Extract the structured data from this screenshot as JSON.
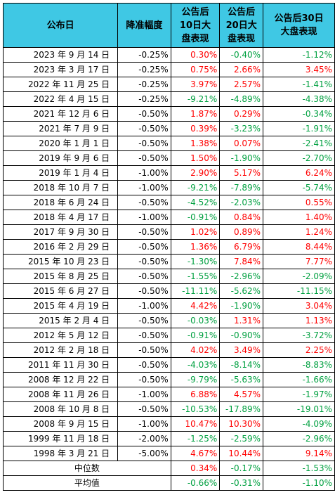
{
  "header": {
    "date": "公布日",
    "cut": "降准幅度",
    "d10": "公告后\n10日大\n盘表现",
    "d20": "公告后\n20日大\n盘表现",
    "d30": "公告后30日\n大盘表现"
  },
  "rows": [
    {
      "date": "2023 年 9 月 14 日",
      "cut": "-0.25%",
      "d10": "0.30%",
      "d20": "-0.40%",
      "d30": "-1.12%"
    },
    {
      "date": "2023 年 3 月 17 日",
      "cut": "-0.25%",
      "d10": "0.75%",
      "d20": "2.66%",
      "d30": "3.45%"
    },
    {
      "date": "2022 年 11 月 25 日",
      "cut": "-0.25%",
      "d10": "3.97%",
      "d20": "2.57%",
      "d30": "-1.41%"
    },
    {
      "date": "2022 年 4 月 15 日",
      "cut": "-0.25%",
      "d10": "-9.21%",
      "d20": "-4.89%",
      "d30": "-4.38%"
    },
    {
      "date": "2021 年 12 月 6 日",
      "cut": "-0.50%",
      "d10": "1.87%",
      "d20": "0.29%",
      "d30": "-0.34%"
    },
    {
      "date": "2021 年 7 月 9 日",
      "cut": "-0.50%",
      "d10": "0.39%",
      "d20": "-3.23%",
      "d30": "-1.91%"
    },
    {
      "date": "2020 年 1 月 1 日",
      "cut": "-0.50%",
      "d10": "1.38%",
      "d20": "0.07%",
      "d30": "-2.41%"
    },
    {
      "date": "2019 年 9 月 6 日",
      "cut": "-0.50%",
      "d10": "1.50%",
      "d20": "-1.90%",
      "d30": "-2.70%"
    },
    {
      "date": "2019 年 1 月 4 日",
      "cut": "-1.00%",
      "d10": "2.90%",
      "d20": "5.17%",
      "d30": "6.24%"
    },
    {
      "date": "2018 年 10 月 7 日",
      "cut": "-1.00%",
      "d10": "-9.21%",
      "d20": "-7.89%",
      "d30": "-5.74%"
    },
    {
      "date": "2018 年 6 月 24 日",
      "cut": "-0.50%",
      "d10": "-4.52%",
      "d20": "-2.03%",
      "d30": "0.55%"
    },
    {
      "date": "2018 年 4 月 17 日",
      "cut": "-1.00%",
      "d10": "-0.91%",
      "d20": "0.84%",
      "d30": "1.40%"
    },
    {
      "date": "2017 年 9 月 30 日",
      "cut": "-0.50%",
      "d10": "1.02%",
      "d20": "0.89%",
      "d30": "1.24%"
    },
    {
      "date": "2016 年 2 月 29 日",
      "cut": "-0.50%",
      "d10": "1.36%",
      "d20": "6.79%",
      "d30": "8.44%"
    },
    {
      "date": "2015 年 10 月 23 日",
      "cut": "-0.50%",
      "d10": "-1.30%",
      "d20": "7.84%",
      "d30": "7.77%"
    },
    {
      "date": "2015 年 8 月 25 日",
      "cut": "-0.50%",
      "d10": "-1.55%",
      "d20": "-2.96%",
      "d30": "-2.09%"
    },
    {
      "date": "2015 年 6 月 27 日",
      "cut": "-0.50%",
      "d10": "-11.11%",
      "d20": "-5.62%",
      "d30": "-11.15%"
    },
    {
      "date": "2015 年 4 月 19 日",
      "cut": "-1.00%",
      "d10": "4.42%",
      "d20": "-1.90%",
      "d30": "3.04%"
    },
    {
      "date": "2015 年 2 月 4 日",
      "cut": "-0.50%",
      "d10": "-0.03%",
      "d20": "1.31%",
      "d30": "1.13%"
    },
    {
      "date": "2012 年 5 月 12 日",
      "cut": "-0.50%",
      "d10": "-0.91%",
      "d20": "-0.90%",
      "d30": "-3.72%"
    },
    {
      "date": "2012 年 2 月 18 日",
      "cut": "-0.50%",
      "d10": "4.02%",
      "d20": "3.49%",
      "d30": "2.25%"
    },
    {
      "date": "2011 年 11 月 30 日",
      "cut": "-0.50%",
      "d10": "-4.03%",
      "d20": "-8.14%",
      "d30": "-8.83%"
    },
    {
      "date": "2008 年 12 月 22 日",
      "cut": "-0.50%",
      "d10": "-9.79%",
      "d20": "-5.63%",
      "d30": "-1.66%"
    },
    {
      "date": "2008 年 11 月 26 日",
      "cut": "-1.00%",
      "d10": "6.88%",
      "d20": "4.57%",
      "d30": "-1.97%"
    },
    {
      "date": "2008 年 10 月 8 日",
      "cut": "-0.50%",
      "d10": "-10.53%",
      "d20": "-17.89%",
      "d30": "-19.01%"
    },
    {
      "date": "2008 年 9 月 15 日",
      "cut": "-1.00%",
      "d10": "10.47%",
      "d20": "10.30%",
      "d30": "-4.09%"
    },
    {
      "date": "1999 年 11 月 18 日",
      "cut": "-2.00%",
      "d10": "-1.25%",
      "d20": "-2.59%",
      "d30": "-2.96%"
    },
    {
      "date": "1998 年 3 月 21 日",
      "cut": "-5.00%",
      "d10": "4.67%",
      "d20": "10.44%",
      "d30": "9.14%"
    }
  ],
  "summary": [
    {
      "label": "中位数",
      "d10": "0.34%",
      "d20": "-0.17%",
      "d30": "-1.53%"
    },
    {
      "label": "平均值",
      "d10": "-0.66%",
      "d20": "-0.31%",
      "d30": "-1.10%"
    }
  ],
  "colors": {
    "header_bg": "#3fc8e4",
    "positive": "#ff0000",
    "negative": "#00a040"
  }
}
